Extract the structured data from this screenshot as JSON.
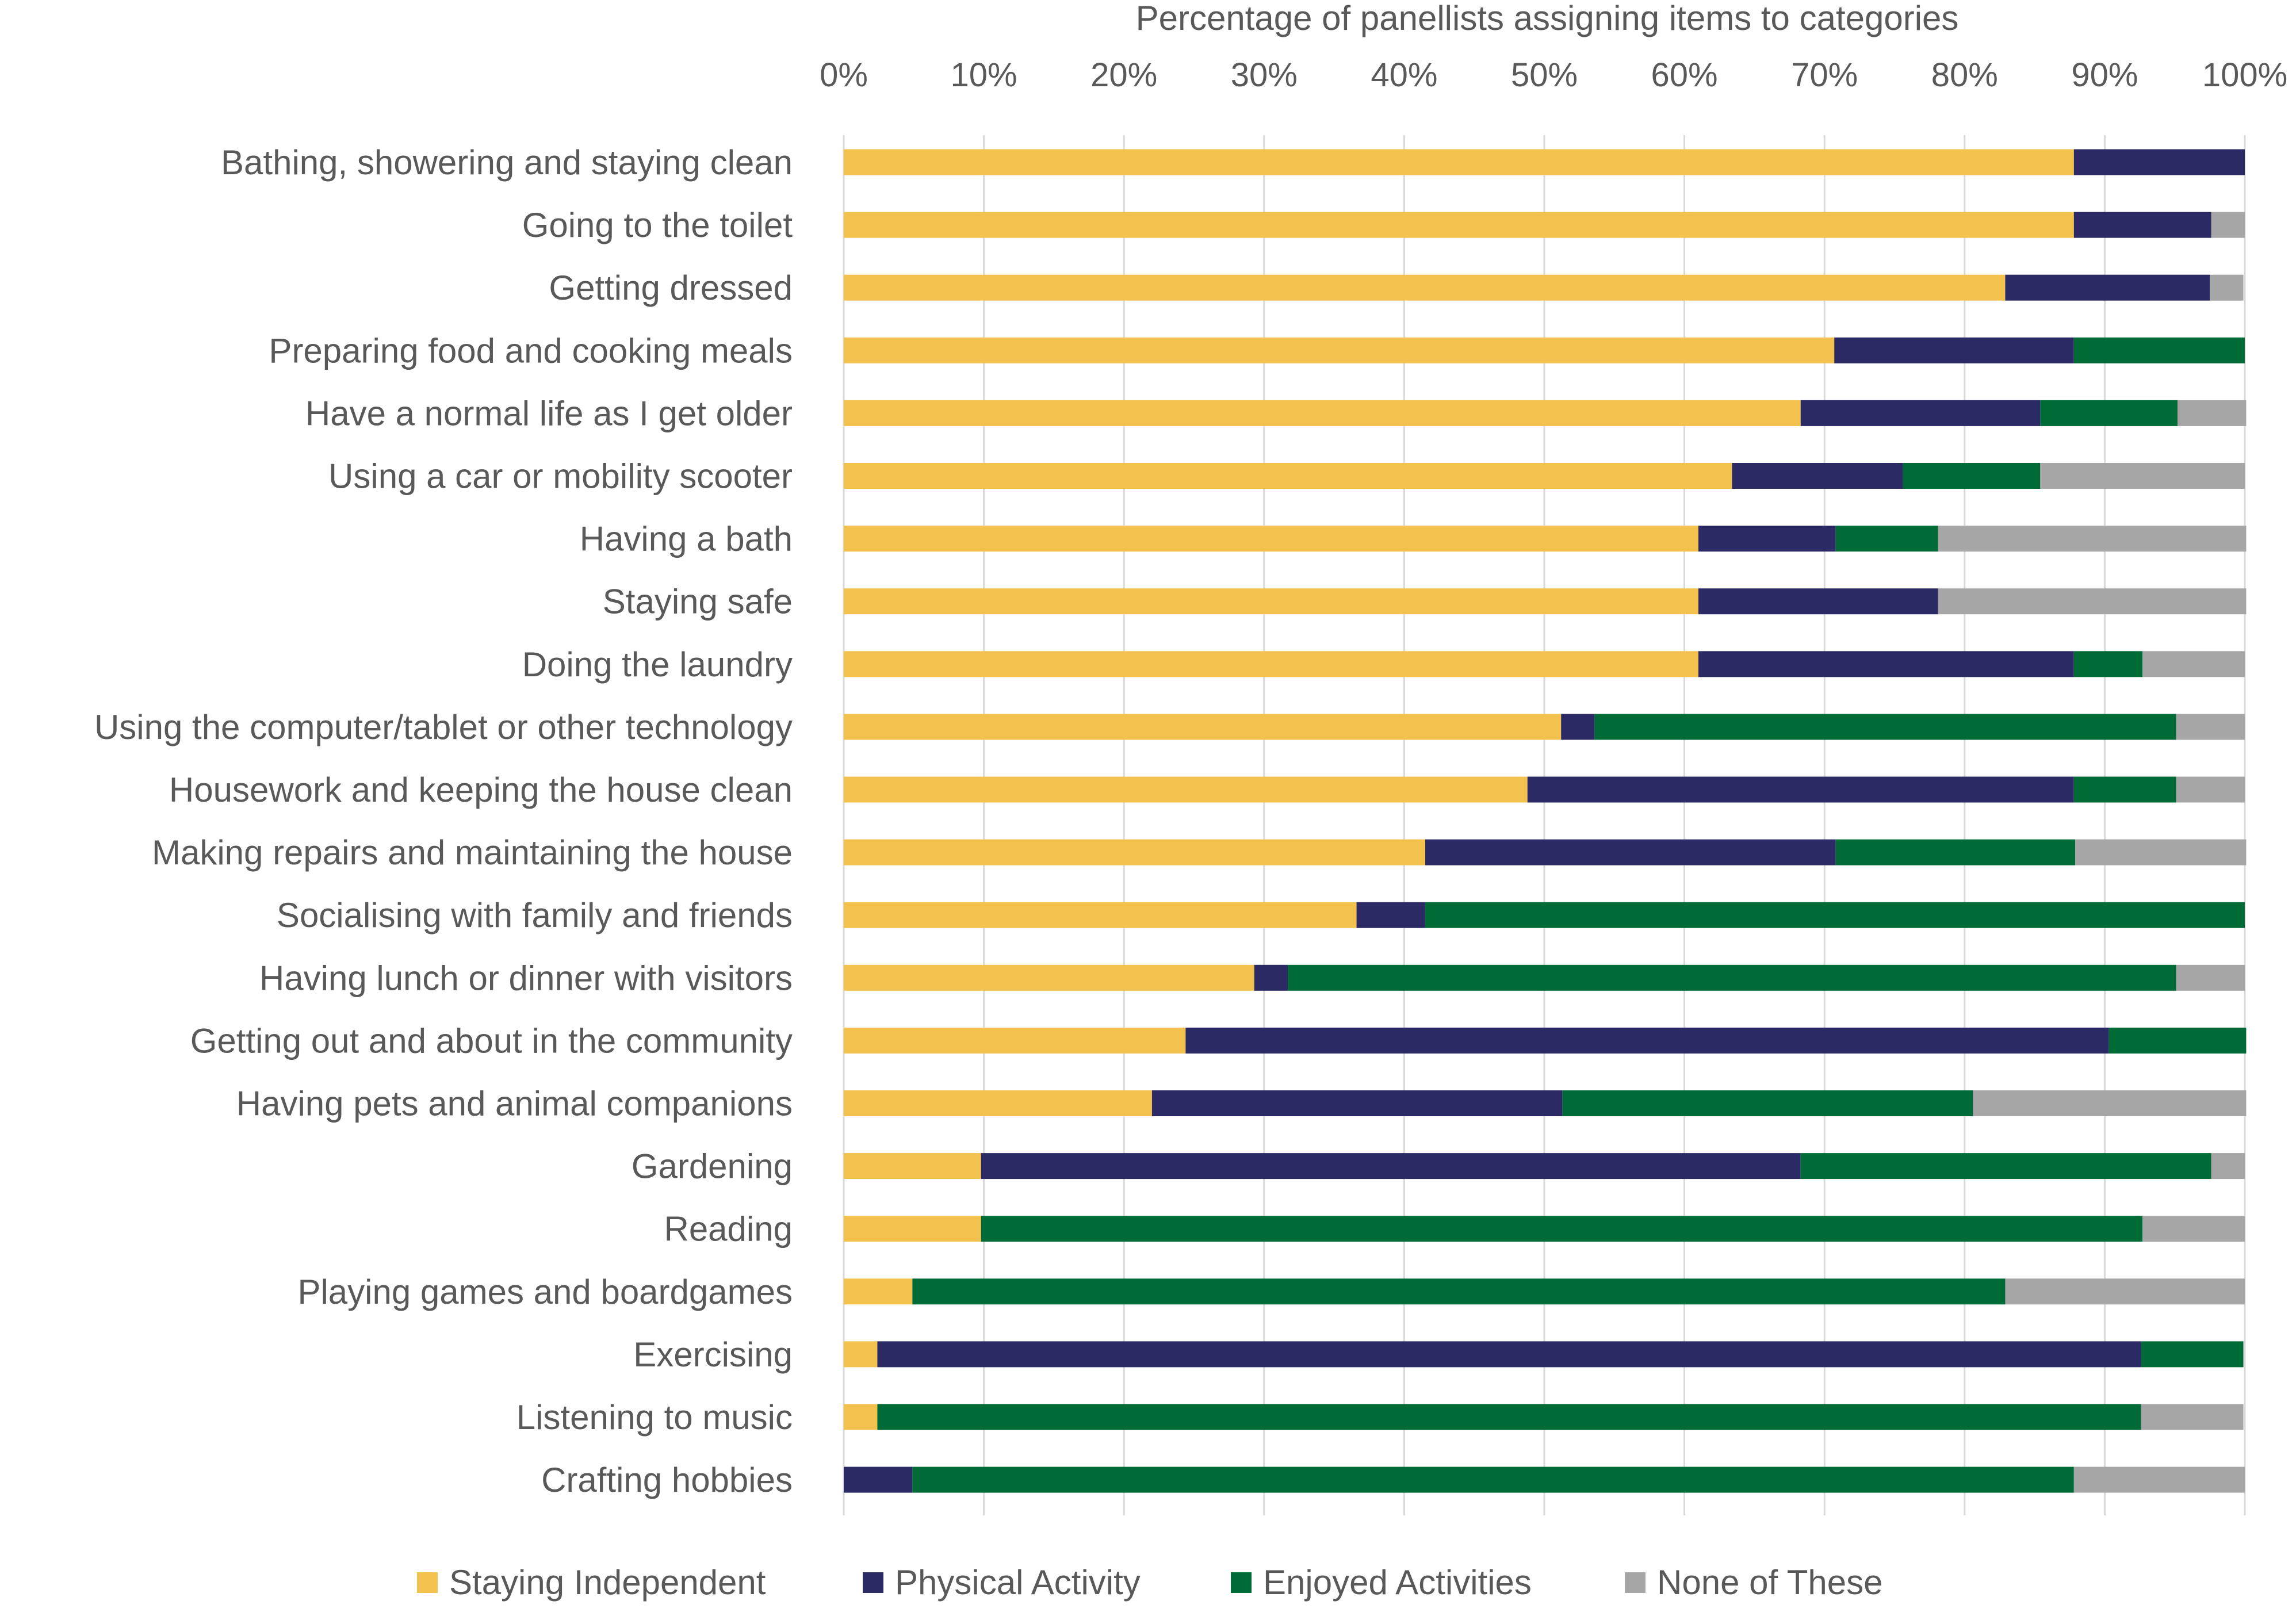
{
  "chart_data": {
    "type": "bar",
    "orientation": "horizontal",
    "stacked": true,
    "title": "Percentage of panellists assigning items to categories",
    "xlabel": "",
    "ylabel": "",
    "xlim": [
      0,
      100
    ],
    "x_ticks": [
      0,
      10,
      20,
      30,
      40,
      50,
      60,
      70,
      80,
      90,
      100
    ],
    "x_tick_labels": [
      "0%",
      "10%",
      "20%",
      "30%",
      "40%",
      "50%",
      "60%",
      "70%",
      "80%",
      "90%",
      "100%"
    ],
    "grid": "vertical",
    "legend_position": "bottom",
    "categories": [
      "Bathing, showering and staying clean",
      "Going to the toilet",
      "Getting dressed",
      "Preparing food and cooking meals",
      "Have a normal life as I get older",
      "Using a car or mobility scooter",
      "Having a bath",
      "Staying safe",
      "Doing the laundry",
      "Using the computer/tablet or other technology",
      "Housework and keeping the house clean",
      "Making repairs and maintaining the house",
      "Socialising with family and friends",
      "Having lunch or dinner with visitors",
      "Getting out and about in the community",
      "Having pets and animal companions",
      "Gardening",
      "Reading",
      "Playing games and boardgames",
      "Exercising",
      "Listening to music",
      "Crafting hobbies"
    ],
    "series": [
      {
        "name": "Staying Independent",
        "color": "#F2C14E",
        "values": [
          87.8,
          87.8,
          82.9,
          70.7,
          68.3,
          63.4,
          61.0,
          61.0,
          61.0,
          51.2,
          48.8,
          41.5,
          36.6,
          29.3,
          24.4,
          22.0,
          9.8,
          9.8,
          4.9,
          2.4,
          2.4,
          0
        ]
      },
      {
        "name": "Physical Activity",
        "color": "#2B2A64",
        "values": [
          12.2,
          9.8,
          14.6,
          17.1,
          17.1,
          12.2,
          9.8,
          17.1,
          26.8,
          2.4,
          39.0,
          29.3,
          4.9,
          2.4,
          65.9,
          29.3,
          58.5,
          0,
          0,
          90.2,
          0,
          4.9
        ]
      },
      {
        "name": "Enjoyed Activities",
        "color": "#006B36",
        "values": [
          0,
          0,
          0,
          12.2,
          9.8,
          9.8,
          7.3,
          0,
          4.9,
          41.5,
          7.3,
          17.1,
          58.5,
          63.4,
          9.8,
          29.3,
          29.3,
          82.9,
          78.0,
          7.3,
          90.2,
          82.9
        ]
      },
      {
        "name": "None of These",
        "color": "#A6A6A6",
        "values": [
          0,
          2.4,
          2.4,
          0,
          4.9,
          14.6,
          22.0,
          22.0,
          7.3,
          4.9,
          4.9,
          12.2,
          0,
          4.9,
          0,
          19.5,
          2.4,
          7.3,
          17.1,
          0,
          7.3,
          12.2
        ]
      }
    ]
  }
}
